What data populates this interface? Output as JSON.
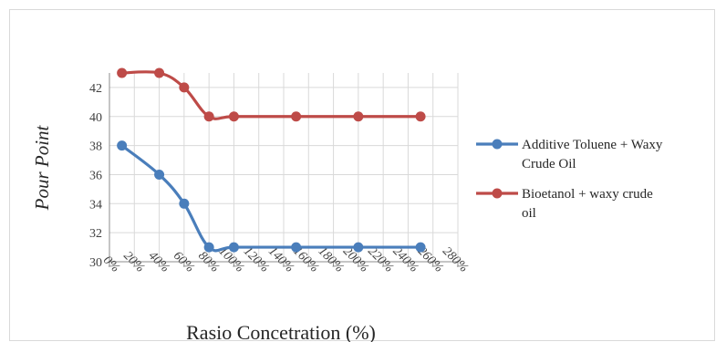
{
  "chart_data": {
    "type": "line",
    "xlabel": "Rasio Concetration (%)",
    "ylabel": "Pour Point",
    "ylim": [
      30,
      43
    ],
    "xlim": [
      0,
      280
    ],
    "x_tick_labels": [
      "0%",
      "20%",
      "40%",
      "60%",
      "80%",
      "100%",
      "120%",
      "140%",
      "160%",
      "180%",
      "200%",
      "220%",
      "240%",
      "260%",
      "280%"
    ],
    "y_tick_labels": [
      "30",
      "32",
      "34",
      "36",
      "38",
      "40",
      "42"
    ],
    "y_ticks": [
      30,
      32,
      34,
      36,
      38,
      40,
      42
    ],
    "grid": "on",
    "legend_position": "right",
    "series": [
      {
        "name": "Additive Toluene + Waxy Crude Oil",
        "legend_lines": [
          "Additive Toluene + Waxy",
          "Crude Oil"
        ],
        "color": "#4a7ebb",
        "x": [
          10,
          40,
          60,
          80,
          100,
          150,
          200,
          250
        ],
        "values": [
          38,
          36,
          34,
          31,
          31,
          31,
          31,
          31
        ]
      },
      {
        "name": "Bioetanol + waxy crude oil",
        "legend_lines": [
          "Bioetanol + waxy crude",
          "oil"
        ],
        "color": "#be4b48",
        "x": [
          10,
          40,
          60,
          80,
          100,
          150,
          200,
          250
        ],
        "values": [
          43,
          43,
          42,
          40,
          40,
          40,
          40,
          40
        ]
      }
    ]
  }
}
